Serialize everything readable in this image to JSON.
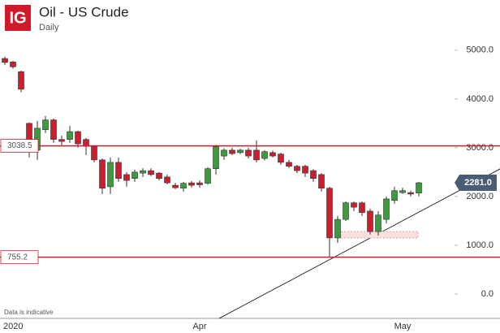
{
  "logo": "IG",
  "chart_data": {
    "type": "candlestick",
    "title": "Oil - US Crude",
    "subtitle": "Daily",
    "footnote": "Data is indicative",
    "categories": [
      "2020",
      null,
      null,
      null,
      null,
      null,
      null,
      null,
      null,
      null,
      null,
      null,
      null,
      null,
      null,
      null,
      null,
      null,
      null,
      null,
      null,
      null,
      null,
      null,
      "Apr",
      null,
      null,
      null,
      null,
      null,
      null,
      null,
      null,
      null,
      null,
      null,
      null,
      null,
      null,
      null,
      null,
      null,
      null,
      null,
      null,
      null,
      null,
      null,
      null,
      "May",
      null,
      null
    ],
    "series": [
      {
        "name": "open",
        "values": [
          4830,
          4760,
          4560,
          3500,
          2950,
          3370,
          3570,
          3170,
          3170,
          3330,
          3170,
          3030,
          2750,
          2200,
          2700,
          2450,
          2370,
          2480,
          2530,
          2480,
          2400,
          2230,
          2170,
          2280,
          2280,
          2270,
          2570,
          2830,
          2950,
          2900,
          2950,
          2950,
          2780,
          2900,
          2870,
          2700,
          2620,
          2620,
          2530,
          2450,
          2170,
          1150,
          1530,
          1870,
          1870,
          1700,
          1280,
          1530,
          1920,
          2080,
          2080,
          2070
        ]
      },
      {
        "name": "high",
        "values": [
          4870,
          4780,
          4580,
          3520,
          3550,
          3650,
          3600,
          3250,
          3450,
          3350,
          3200,
          3050,
          2780,
          2800,
          2800,
          2500,
          2550,
          2580,
          2580,
          2500,
          2450,
          2280,
          2300,
          2320,
          2330,
          2600,
          3060,
          2990,
          3000,
          2980,
          3000,
          3150,
          2950,
          2940,
          2900,
          2750,
          2650,
          2650,
          2560,
          2480,
          2200,
          1600,
          1900,
          1900,
          1900,
          1750,
          1700,
          2000,
          2200,
          2180,
          2120,
          2300
        ]
      },
      {
        "name": "low",
        "values": [
          4700,
          4620,
          4140,
          2800,
          2750,
          3300,
          3100,
          3050,
          3100,
          3000,
          2850,
          2700,
          2050,
          2050,
          2300,
          2200,
          2300,
          2400,
          2420,
          2330,
          2250,
          2150,
          2100,
          2180,
          2180,
          2240,
          2450,
          2750,
          2850,
          2870,
          2780,
          2700,
          2740,
          2800,
          2650,
          2580,
          2480,
          2400,
          2300,
          2100,
          755,
          1050,
          1500,
          1700,
          1600,
          1220,
          1200,
          1450,
          1850,
          2050,
          2000,
          2000
        ]
      },
      {
        "name": "close",
        "values": [
          4750,
          4660,
          4200,
          2950,
          3400,
          3570,
          3170,
          3130,
          3330,
          3080,
          3030,
          2750,
          2170,
          2700,
          2370,
          2330,
          2500,
          2530,
          2450,
          2370,
          2280,
          2180,
          2270,
          2230,
          2240,
          2570,
          3020,
          2950,
          2880,
          2950,
          2830,
          2750,
          2920,
          2830,
          2700,
          2620,
          2530,
          2480,
          2370,
          2170,
          1150,
          1530,
          1870,
          1780,
          1670,
          1280,
          1620,
          1950,
          2120,
          2120,
          2050,
          2281
        ]
      }
    ],
    "up_color": "#3d9a3d",
    "down_color": "#cc1f2e",
    "levels": [
      {
        "value": 3038.5,
        "label": "3038.5"
      },
      {
        "value": 755.2,
        "label": "755.2"
      }
    ],
    "level_color": "#cc1f2e",
    "last_price": {
      "value": 2281,
      "label": "2281.0"
    },
    "ylim": [
      -500,
      6030
    ],
    "yticks": [
      {
        "value": 0,
        "label": "0.0"
      },
      {
        "value": 1000,
        "label": "1000.0"
      },
      {
        "value": 2000,
        "label": "2000.0"
      },
      {
        "value": 3000,
        "label": "3000.0"
      },
      {
        "value": 4000,
        "label": "4000.0"
      },
      {
        "value": 5000,
        "label": "5000.0"
      }
    ]
  }
}
